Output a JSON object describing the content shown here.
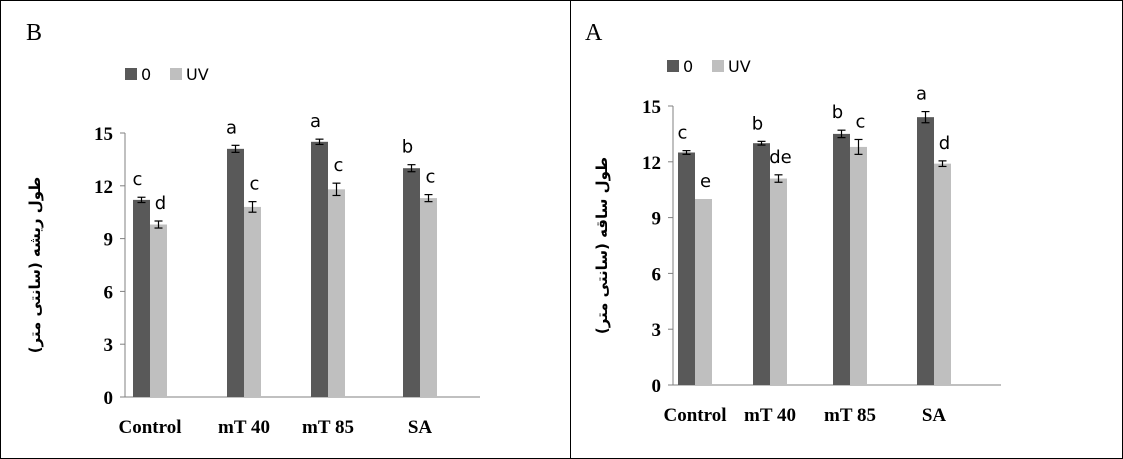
{
  "chart_data": [
    {
      "type": "bar",
      "panel_label": "B",
      "ylabel": "طول ریشه (سانتی متر)",
      "xlabel": "",
      "categories": [
        "Control",
        "mT 40",
        "mT 85",
        "SA"
      ],
      "ylim": [
        0,
        15
      ],
      "yticks": [
        "0",
        "3",
        "6",
        "9",
        "12",
        "15"
      ],
      "legend_position": "top-left",
      "grid": false,
      "series": [
        {
          "name": "0",
          "color": "#595959",
          "values": [
            11.2,
            14.1,
            14.5,
            13.0
          ],
          "errors": [
            0.15,
            0.2,
            0.15,
            0.2
          ],
          "letters": [
            "c",
            "a",
            "a",
            "b"
          ]
        },
        {
          "name": "UV",
          "color": "#bfbfbf",
          "values": [
            9.8,
            10.8,
            11.8,
            11.3
          ],
          "errors": [
            0.2,
            0.3,
            0.35,
            0.2
          ],
          "letters": [
            "d",
            "c",
            "c",
            "c"
          ]
        }
      ]
    },
    {
      "type": "bar",
      "panel_label": "A",
      "ylabel": "طول ساقه (سانتی متر)",
      "xlabel": "",
      "categories": [
        "Control",
        "mT 40",
        "mT 85",
        "SA"
      ],
      "ylim": [
        0,
        15
      ],
      "yticks": [
        "0",
        "3",
        "6",
        "9",
        "12",
        "15"
      ],
      "legend_position": "top-left",
      "grid": false,
      "series": [
        {
          "name": "0",
          "color": "#595959",
          "values": [
            12.5,
            13.0,
            13.5,
            14.4
          ],
          "errors": [
            0.1,
            0.1,
            0.2,
            0.3
          ],
          "letters": [
            "c",
            "b",
            "b",
            "a"
          ]
        },
        {
          "name": "UV",
          "color": "#bfbfbf",
          "values": [
            10.0,
            11.1,
            12.8,
            11.9
          ],
          "errors": [
            0,
            0.2,
            0.4,
            0.15
          ],
          "letters": [
            "e",
            "de",
            "c",
            "d"
          ]
        }
      ]
    }
  ]
}
